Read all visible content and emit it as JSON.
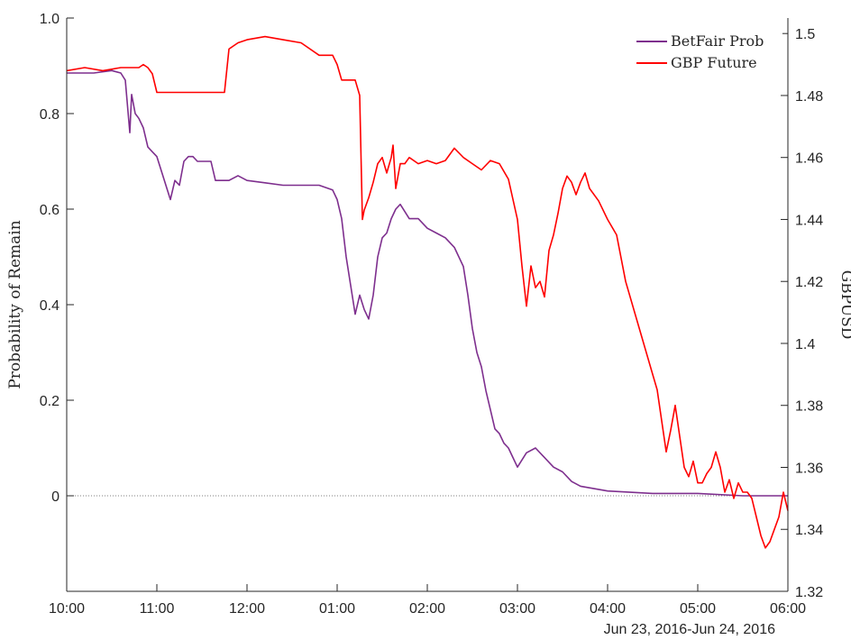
{
  "chart_data": {
    "type": "line",
    "title": "",
    "xlabel": "Jun 23, 2016-Jun 24, 2016",
    "ylabel_left": "Probability of Remain",
    "ylabel_right": "GBPUSD",
    "x_tick_labels": [
      "10:00",
      "11:00",
      "12:00",
      "01:00",
      "02:00",
      "03:00",
      "04:00",
      "05:00",
      "06:00"
    ],
    "x_range_hours": [
      0,
      8
    ],
    "ylim_left": [
      -0.2,
      1.0
    ],
    "yticks_left": [
      "0",
      "0.2",
      "0.4",
      "0.6",
      "0.8",
      "1.0"
    ],
    "ylim_right": [
      1.32,
      1.505
    ],
    "yticks_right": [
      "1.32",
      "1.34",
      "1.36",
      "1.38",
      "1.4",
      "1.42",
      "1.44",
      "1.46",
      "1.48",
      "1.5"
    ],
    "zero_line": true,
    "grid": false,
    "legend_position": "top-right",
    "series": [
      {
        "name": "BetFair Prob",
        "axis": "left",
        "color": "#7E2F8E",
        "x": [
          0,
          0.3,
          0.5,
          0.6,
          0.65,
          0.7,
          0.72,
          0.74,
          0.76,
          0.8,
          0.85,
          0.9,
          0.95,
          1.0,
          1.05,
          1.1,
          1.15,
          1.2,
          1.25,
          1.3,
          1.35,
          1.4,
          1.45,
          1.5,
          1.55,
          1.6,
          1.65,
          1.7,
          1.75,
          1.8,
          1.9,
          2.0,
          2.2,
          2.4,
          2.6,
          2.8,
          2.95,
          3.0,
          3.05,
          3.1,
          3.15,
          3.2,
          3.25,
          3.3,
          3.35,
          3.4,
          3.45,
          3.5,
          3.55,
          3.6,
          3.65,
          3.7,
          3.8,
          3.9,
          4.0,
          4.1,
          4.2,
          4.3,
          4.4,
          4.45,
          4.5,
          4.55,
          4.6,
          4.65,
          4.7,
          4.75,
          4.8,
          4.85,
          4.9,
          4.95,
          5.0,
          5.1,
          5.2,
          5.3,
          5.4,
          5.5,
          5.6,
          5.7,
          6.0,
          6.5,
          7.0,
          7.5,
          8.0
        ],
        "values": [
          0.885,
          0.885,
          0.89,
          0.885,
          0.87,
          0.76,
          0.84,
          0.82,
          0.8,
          0.79,
          0.77,
          0.73,
          0.72,
          0.71,
          0.68,
          0.65,
          0.62,
          0.66,
          0.65,
          0.7,
          0.71,
          0.71,
          0.7,
          0.7,
          0.7,
          0.7,
          0.66,
          0.66,
          0.66,
          0.66,
          0.67,
          0.66,
          0.655,
          0.65,
          0.65,
          0.65,
          0.64,
          0.62,
          0.58,
          0.5,
          0.44,
          0.38,
          0.42,
          0.39,
          0.37,
          0.42,
          0.5,
          0.54,
          0.55,
          0.58,
          0.6,
          0.61,
          0.58,
          0.58,
          0.56,
          0.55,
          0.54,
          0.52,
          0.48,
          0.42,
          0.35,
          0.3,
          0.27,
          0.22,
          0.18,
          0.14,
          0.13,
          0.11,
          0.1,
          0.08,
          0.06,
          0.09,
          0.1,
          0.08,
          0.06,
          0.05,
          0.03,
          0.02,
          0.01,
          0.005,
          0.005,
          0.0,
          0.0
        ]
      },
      {
        "name": "GBP Future",
        "axis": "right",
        "color": "#FF0000",
        "x": [
          0,
          0.2,
          0.4,
          0.6,
          0.8,
          0.85,
          0.9,
          0.95,
          1.0,
          1.5,
          1.75,
          1.8,
          1.9,
          2.0,
          2.2,
          2.4,
          2.6,
          2.8,
          2.95,
          3.0,
          3.05,
          3.1,
          3.2,
          3.25,
          3.28,
          3.3,
          3.35,
          3.4,
          3.45,
          3.5,
          3.55,
          3.6,
          3.62,
          3.65,
          3.7,
          3.75,
          3.8,
          3.9,
          4.0,
          4.1,
          4.2,
          4.3,
          4.4,
          4.5,
          4.6,
          4.7,
          4.8,
          4.9,
          5.0,
          5.05,
          5.1,
          5.15,
          5.2,
          5.25,
          5.3,
          5.35,
          5.4,
          5.45,
          5.5,
          5.55,
          5.6,
          5.65,
          5.7,
          5.75,
          5.8,
          5.9,
          6.0,
          6.1,
          6.2,
          6.3,
          6.4,
          6.5,
          6.55,
          6.6,
          6.65,
          6.7,
          6.75,
          6.8,
          6.85,
          6.9,
          6.95,
          7.0,
          7.05,
          7.1,
          7.15,
          7.2,
          7.25,
          7.3,
          7.35,
          7.4,
          7.45,
          7.5,
          7.55,
          7.6,
          7.65,
          7.7,
          7.75,
          7.8,
          7.85,
          7.9,
          7.95,
          8.0
        ],
        "values": [
          1.488,
          1.489,
          1.488,
          1.489,
          1.489,
          1.49,
          1.489,
          1.487,
          1.481,
          1.481,
          1.481,
          1.495,
          1.497,
          1.498,
          1.499,
          1.498,
          1.497,
          1.493,
          1.493,
          1.49,
          1.485,
          1.485,
          1.485,
          1.48,
          1.44,
          1.443,
          1.447,
          1.452,
          1.458,
          1.46,
          1.455,
          1.46,
          1.464,
          1.45,
          1.458,
          1.458,
          1.46,
          1.458,
          1.459,
          1.458,
          1.459,
          1.463,
          1.46,
          1.458,
          1.456,
          1.459,
          1.458,
          1.453,
          1.44,
          1.425,
          1.412,
          1.425,
          1.418,
          1.42,
          1.415,
          1.43,
          1.435,
          1.442,
          1.45,
          1.454,
          1.452,
          1.448,
          1.452,
          1.455,
          1.45,
          1.446,
          1.44,
          1.435,
          1.42,
          1.41,
          1.4,
          1.39,
          1.385,
          1.375,
          1.365,
          1.372,
          1.38,
          1.37,
          1.36,
          1.357,
          1.362,
          1.355,
          1.355,
          1.358,
          1.36,
          1.365,
          1.36,
          1.352,
          1.356,
          1.35,
          1.355,
          1.352,
          1.352,
          1.35,
          1.344,
          1.338,
          1.334,
          1.336,
          1.34,
          1.344,
          1.352,
          1.346
        ]
      }
    ]
  }
}
